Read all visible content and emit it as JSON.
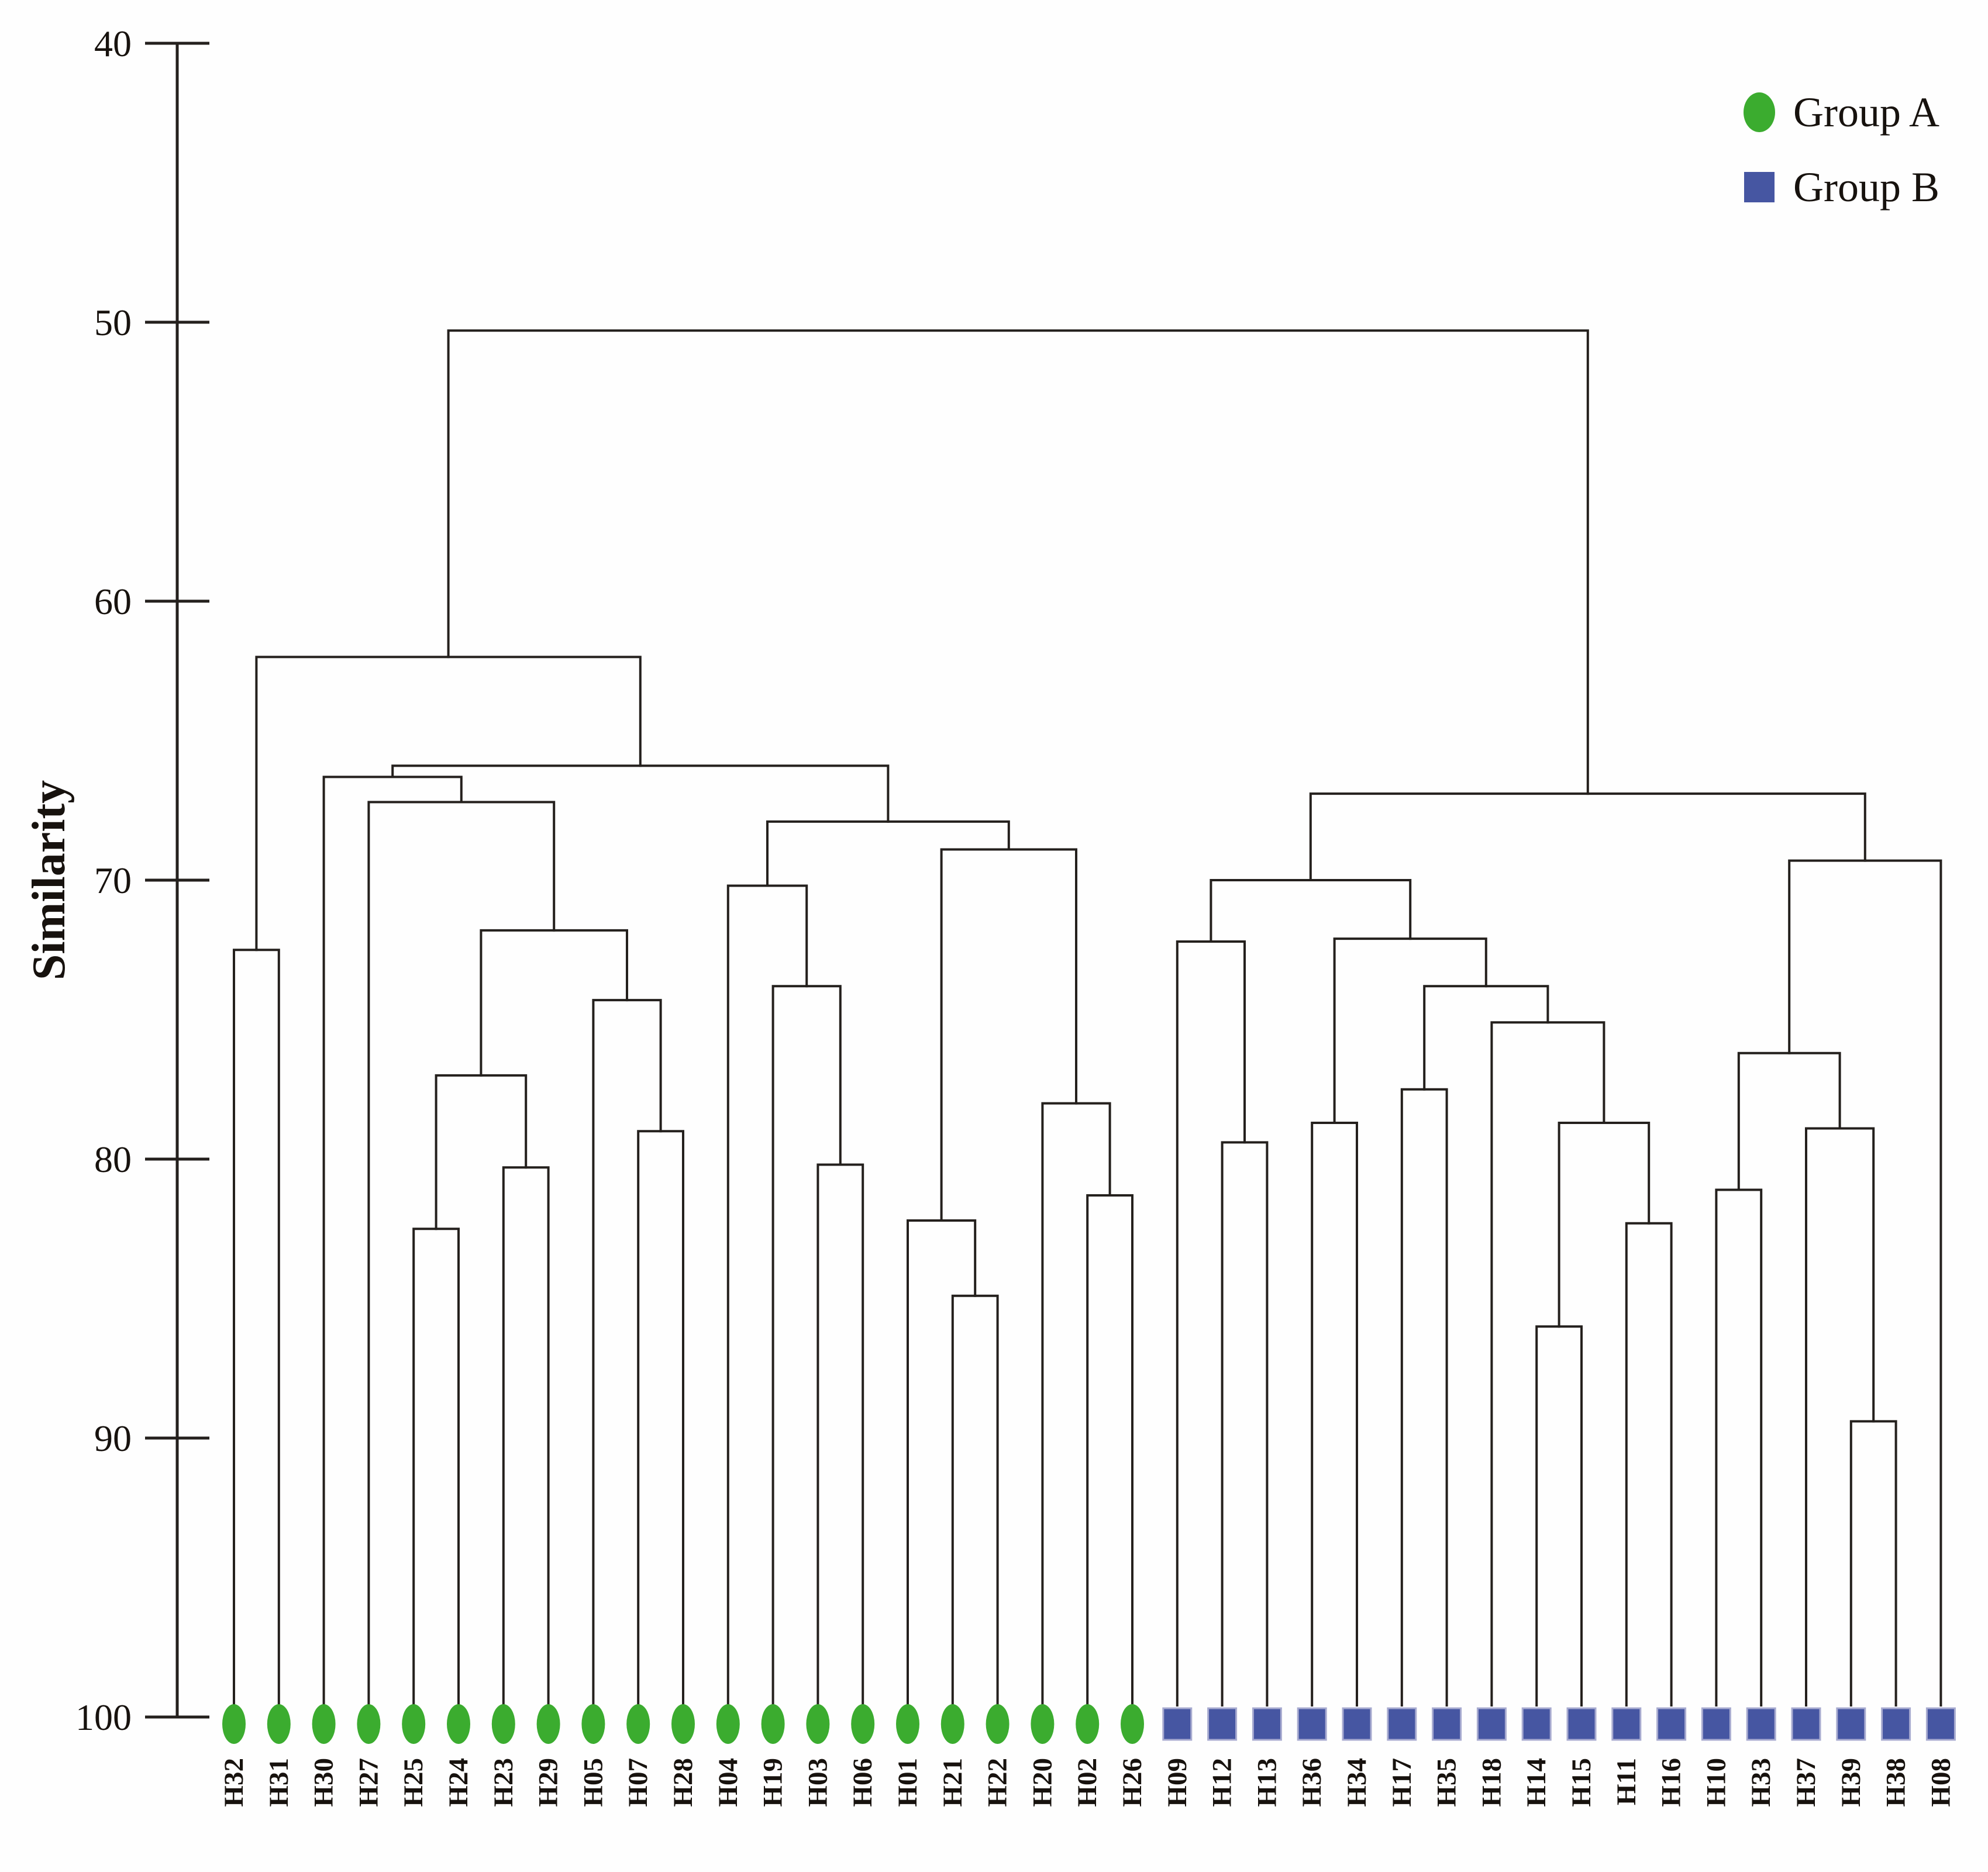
{
  "chart_data": {
    "type": "dendrogram",
    "orientation": "root-top",
    "ylabel": "Similarity",
    "yticks": [
      "40",
      "50",
      "60",
      "70",
      "80",
      "90",
      "100"
    ],
    "ytick_values": [
      40,
      50,
      60,
      70,
      80,
      90,
      100
    ],
    "ylim": [
      40,
      100
    ],
    "grid": false,
    "legend_position": "top-right",
    "leaves": [
      {
        "label": "H32",
        "group": "A"
      },
      {
        "label": "H31",
        "group": "A"
      },
      {
        "label": "H30",
        "group": "A"
      },
      {
        "label": "H27",
        "group": "A"
      },
      {
        "label": "H25",
        "group": "A"
      },
      {
        "label": "H24",
        "group": "A"
      },
      {
        "label": "H23",
        "group": "A"
      },
      {
        "label": "H29",
        "group": "A"
      },
      {
        "label": "H05",
        "group": "A"
      },
      {
        "label": "H07",
        "group": "A"
      },
      {
        "label": "H28",
        "group": "A"
      },
      {
        "label": "H04",
        "group": "A"
      },
      {
        "label": "H19",
        "group": "A"
      },
      {
        "label": "H03",
        "group": "A"
      },
      {
        "label": "H06",
        "group": "A"
      },
      {
        "label": "H01",
        "group": "A"
      },
      {
        "label": "H21",
        "group": "A"
      },
      {
        "label": "H22",
        "group": "A"
      },
      {
        "label": "H20",
        "group": "A"
      },
      {
        "label": "H02",
        "group": "A"
      },
      {
        "label": "H26",
        "group": "A"
      },
      {
        "label": "H09",
        "group": "B"
      },
      {
        "label": "H12",
        "group": "B"
      },
      {
        "label": "H13",
        "group": "B"
      },
      {
        "label": "H36",
        "group": "B"
      },
      {
        "label": "H34",
        "group": "B"
      },
      {
        "label": "H17",
        "group": "B"
      },
      {
        "label": "H35",
        "group": "B"
      },
      {
        "label": "H18",
        "group": "B"
      },
      {
        "label": "H14",
        "group": "B"
      },
      {
        "label": "H15",
        "group": "B"
      },
      {
        "label": "H11",
        "group": "B"
      },
      {
        "label": "H16",
        "group": "B"
      },
      {
        "label": "H10",
        "group": "B"
      },
      {
        "label": "H33",
        "group": "B"
      },
      {
        "label": "H37",
        "group": "B"
      },
      {
        "label": "H39",
        "group": "B"
      },
      {
        "label": "H38",
        "group": "B"
      },
      {
        "label": "H08",
        "group": "B"
      }
    ],
    "merges": [
      {
        "a": "H32",
        "b": "H31",
        "sim": 72.5,
        "id": "a1"
      },
      {
        "a": "H07",
        "b": "H28",
        "sim": 79.0,
        "id": "a2"
      },
      {
        "a": "H05",
        "b": "a2",
        "sim": 74.3,
        "id": "a3"
      },
      {
        "a": "H25",
        "b": "H24",
        "sim": 82.5,
        "id": "a4"
      },
      {
        "a": "H23",
        "b": "H29",
        "sim": 80.3,
        "id": "a5"
      },
      {
        "a": "a4",
        "b": "a5",
        "sim": 77.0,
        "id": "a6"
      },
      {
        "a": "a6",
        "b": "a3",
        "sim": 71.8,
        "id": "a7"
      },
      {
        "a": "H27",
        "b": "a7",
        "sim": 67.2,
        "id": "a8"
      },
      {
        "a": "H30",
        "b": "a8",
        "sim": 66.3,
        "id": "a9"
      },
      {
        "a": "H03",
        "b": "H06",
        "sim": 80.2,
        "id": "a10"
      },
      {
        "a": "H19",
        "b": "a10",
        "sim": 73.8,
        "id": "a11"
      },
      {
        "a": "H04",
        "b": "a11",
        "sim": 70.2,
        "id": "a12"
      },
      {
        "a": "H21",
        "b": "H22",
        "sim": 84.9,
        "id": "a13"
      },
      {
        "a": "H01",
        "b": "a13",
        "sim": 82.2,
        "id": "a14"
      },
      {
        "a": "H02",
        "b": "H26",
        "sim": 81.3,
        "id": "a15"
      },
      {
        "a": "H20",
        "b": "a15",
        "sim": 78.0,
        "id": "a16"
      },
      {
        "a": "a14",
        "b": "a16",
        "sim": 68.9,
        "id": "a17"
      },
      {
        "a": "a12",
        "b": "a17",
        "sim": 67.9,
        "id": "a18"
      },
      {
        "a": "a9",
        "b": "a18",
        "sim": 65.9,
        "id": "a19"
      },
      {
        "a": "a1",
        "b": "a19",
        "sim": 62.0,
        "id": "a20"
      },
      {
        "a": "H12",
        "b": "H13",
        "sim": 79.4,
        "id": "b1"
      },
      {
        "a": "H09",
        "b": "b1",
        "sim": 72.2,
        "id": "b2"
      },
      {
        "a": "H36",
        "b": "H34",
        "sim": 78.7,
        "id": "b3"
      },
      {
        "a": "H17",
        "b": "H35",
        "sim": 77.5,
        "id": "b4"
      },
      {
        "a": "H14",
        "b": "H15",
        "sim": 86.0,
        "id": "b5"
      },
      {
        "a": "H11",
        "b": "H16",
        "sim": 82.3,
        "id": "b6"
      },
      {
        "a": "b5",
        "b": "b6",
        "sim": 78.7,
        "id": "b7"
      },
      {
        "a": "H18",
        "b": "b7",
        "sim": 75.1,
        "id": "b8"
      },
      {
        "a": "b4",
        "b": "b8",
        "sim": 73.8,
        "id": "b9"
      },
      {
        "a": "b3",
        "b": "b9",
        "sim": 72.1,
        "id": "b10"
      },
      {
        "a": "b2",
        "b": "b10",
        "sim": 70.0,
        "id": "b11"
      },
      {
        "a": "H10",
        "b": "H33",
        "sim": 81.1,
        "id": "b12"
      },
      {
        "a": "H39",
        "b": "H38",
        "sim": 89.4,
        "id": "b13"
      },
      {
        "a": "H37",
        "b": "b13",
        "sim": 78.9,
        "id": "b14"
      },
      {
        "a": "b12",
        "b": "b14",
        "sim": 76.2,
        "id": "b15"
      },
      {
        "a": "b15",
        "b": "H08",
        "sim": 69.3,
        "id": "b16"
      },
      {
        "a": "b11",
        "b": "b16",
        "sim": 66.9,
        "id": "b17"
      },
      {
        "a": "a20",
        "b": "b17",
        "sim": 50.3,
        "id": "root"
      }
    ]
  },
  "legend": [
    {
      "label": "Group A",
      "marker": "ellipse",
      "color": "#3bac2f"
    },
    {
      "label": "Group B",
      "marker": "square",
      "color": "#4656a2"
    }
  ],
  "colors": {
    "group_a": "#3bac2f",
    "group_b": "#4656a2",
    "square_edge": "#a8abd0",
    "line": "#24201d",
    "text": "#17120e",
    "background": "#fefefe"
  }
}
